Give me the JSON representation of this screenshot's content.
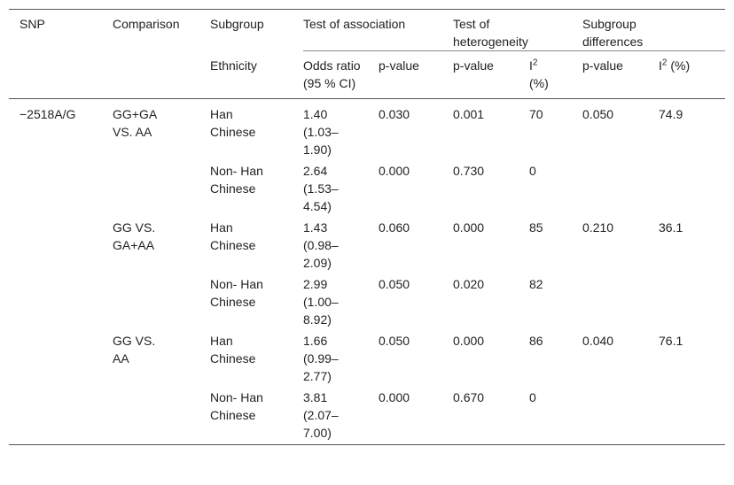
{
  "header": {
    "snp": "SNP",
    "comparison": "Comparison",
    "subgroup": "Subgroup",
    "test_association": "Test of association",
    "test_heterogeneity": "Test of heterogeneity",
    "subgroup_differences": "Subgroup differences",
    "ethnicity": "Ethnicity",
    "odds_ratio": "Odds ratio (95 % CI)",
    "p_value": "p-value",
    "i2_base": "I",
    "i2_sup": "2",
    "i2_unit": "(%)"
  },
  "rows": [
    {
      "snp": "−2518A/G",
      "comparison": "GG+GA VS. AA",
      "ethnicity": "Han Chinese",
      "or": "1.40 (1.03– 1.90)",
      "p_assoc": "0.030",
      "p_het": "0.001",
      "i2": "70",
      "p_sub": "0.050",
      "i2_sub": "74.9"
    },
    {
      "snp": "",
      "comparison": "",
      "ethnicity": "Non- Han Chinese",
      "or": "2.64 (1.53– 4.54)",
      "p_assoc": "0.000",
      "p_het": "0.730",
      "i2": "0",
      "p_sub": "",
      "i2_sub": ""
    },
    {
      "snp": "",
      "comparison": "GG VS. GA+AA",
      "ethnicity": "Han Chinese",
      "or": "1.43 (0.98– 2.09)",
      "p_assoc": "0.060",
      "p_het": "0.000",
      "i2": "85",
      "p_sub": "0.210",
      "i2_sub": "36.1"
    },
    {
      "snp": "",
      "comparison": "",
      "ethnicity": "Non- Han Chinese",
      "or": "2.99 (1.00– 8.92)",
      "p_assoc": "0.050",
      "p_het": "0.020",
      "i2": "82",
      "p_sub": "",
      "i2_sub": ""
    },
    {
      "snp": "",
      "comparison": "GG VS. AA",
      "ethnicity": "Han Chinese",
      "or": "1.66 (0.99– 2.77)",
      "p_assoc": "0.050",
      "p_het": "0.000",
      "i2": "86",
      "p_sub": "0.040",
      "i2_sub": "76.1"
    },
    {
      "snp": "",
      "comparison": "",
      "ethnicity": "Non- Han Chinese",
      "or": "3.81 (2.07– 7.00)",
      "p_assoc": "0.000",
      "p_het": "0.670",
      "i2": "0",
      "p_sub": "",
      "i2_sub": ""
    }
  ]
}
